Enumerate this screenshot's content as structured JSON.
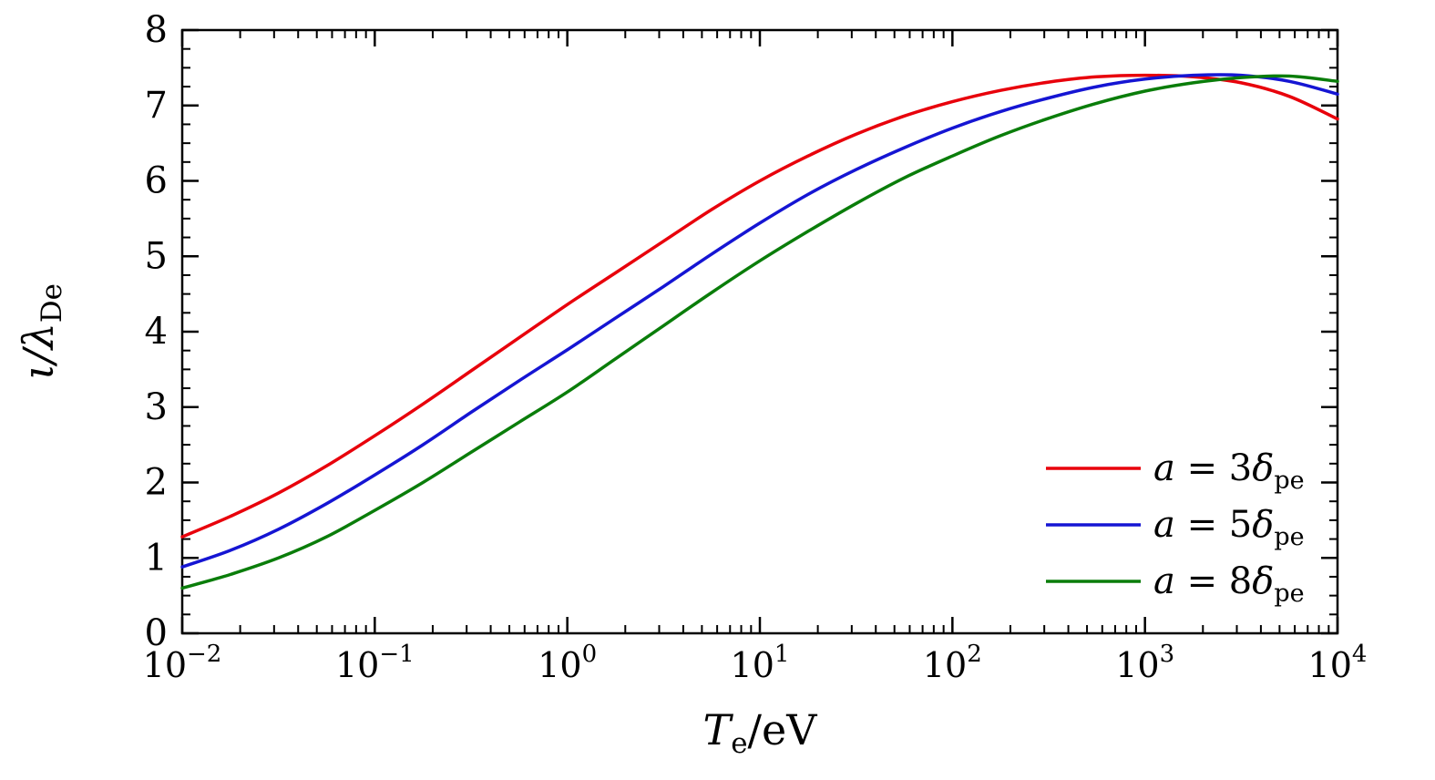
{
  "figure": {
    "background": "#ffffff",
    "frame_color": "#000000"
  },
  "chart_data": {
    "type": "line",
    "title": "",
    "x_scale": "log",
    "xlabel": "T_e/eV",
    "xlabel_parts": {
      "var": "T",
      "sub": "e",
      "rest": "/eV"
    },
    "ylabel": "ι/λ_De",
    "ylabel_parts": {
      "var": "ι/λ",
      "sub": "De"
    },
    "xlim": [
      0.01,
      10000
    ],
    "ylim": [
      0,
      8
    ],
    "x_tick_exponents": [
      -2,
      -1,
      0,
      1,
      2,
      3,
      4
    ],
    "y_ticks": [
      0,
      1,
      2,
      3,
      4,
      5,
      6,
      7,
      8
    ],
    "y_minor_step": 0.25,
    "grid": false,
    "legend_position": "lower right",
    "log_x": [
      -2,
      -1.75,
      -1.5,
      -1.25,
      -1,
      -0.75,
      -0.5,
      -0.25,
      0,
      0.25,
      0.5,
      0.75,
      1,
      1.25,
      1.5,
      1.75,
      2,
      2.25,
      2.5,
      2.75,
      3,
      3.25,
      3.5,
      3.75,
      4
    ],
    "series": [
      {
        "name": "a = 3δ_pe",
        "color": "#e8000b",
        "label_parts": {
          "var": "a",
          "eq": " = ",
          "coef": "3",
          "symbol": "δ",
          "sub": "pe"
        },
        "values": [
          1.28,
          1.55,
          1.86,
          2.22,
          2.62,
          3.04,
          3.48,
          3.92,
          4.36,
          4.78,
          5.2,
          5.62,
          6.0,
          6.33,
          6.62,
          6.86,
          7.05,
          7.2,
          7.31,
          7.38,
          7.4,
          7.38,
          7.3,
          7.12,
          6.82
        ]
      },
      {
        "name": "a = 5δ_pe",
        "color": "#1515d3",
        "label_parts": {
          "var": "a",
          "eq": " = ",
          "coef": "5",
          "symbol": "δ",
          "sub": "pe"
        },
        "values": [
          0.88,
          1.1,
          1.38,
          1.72,
          2.1,
          2.5,
          2.93,
          3.35,
          3.76,
          4.18,
          4.6,
          5.03,
          5.44,
          5.82,
          6.15,
          6.44,
          6.7,
          6.92,
          7.1,
          7.25,
          7.35,
          7.4,
          7.4,
          7.32,
          7.15
        ]
      },
      {
        "name": "a = 8δ_pe",
        "color": "#0a7d0a",
        "label_parts": {
          "var": "a",
          "eq": " = ",
          "coef": "8",
          "symbol": "δ",
          "sub": "pe"
        },
        "values": [
          0.6,
          0.78,
          1.0,
          1.28,
          1.63,
          2.0,
          2.4,
          2.8,
          3.2,
          3.64,
          4.08,
          4.52,
          4.94,
          5.33,
          5.7,
          6.04,
          6.33,
          6.6,
          6.83,
          7.03,
          7.19,
          7.3,
          7.37,
          7.39,
          7.32
        ]
      }
    ]
  }
}
